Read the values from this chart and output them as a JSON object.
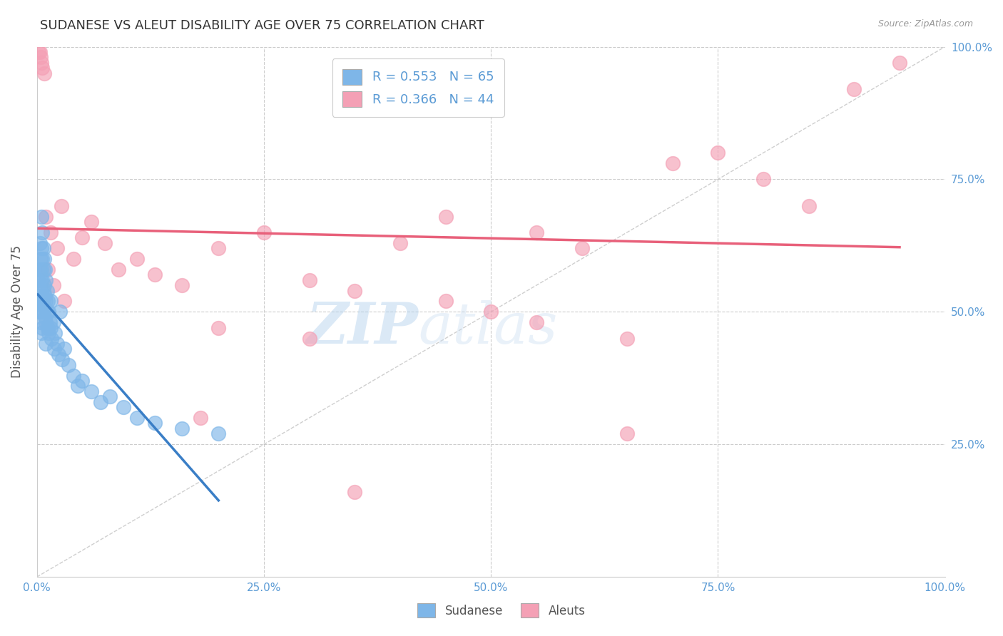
{
  "title": "SUDANESE VS ALEUT DISABILITY AGE OVER 75 CORRELATION CHART",
  "source_text": "Source: ZipAtlas.com",
  "ylabel": "Disability Age Over 75",
  "xlim": [
    0,
    1
  ],
  "ylim": [
    0,
    1
  ],
  "xticks": [
    0,
    0.25,
    0.5,
    0.75,
    1.0
  ],
  "yticks": [
    0.0,
    0.25,
    0.5,
    0.75,
    1.0
  ],
  "xticklabels": [
    "0.0%",
    "25.0%",
    "50.0%",
    "75.0%",
    "100.0%"
  ],
  "yticklabels_right": [
    "",
    "25.0%",
    "50.0%",
    "75.0%",
    "100.0%"
  ],
  "blue_color": "#7EB6E8",
  "pink_color": "#F4A0B5",
  "blue_line_color": "#3A7EC6",
  "pink_line_color": "#E8607A",
  "background_color": "#FFFFFF",
  "grid_color": "#CCCCCC",
  "title_color": "#333333",
  "title_fontsize": 13,
  "axis_label_color": "#555555",
  "tick_color": "#5B9BD5",
  "watermark_text": "ZIPatlas",
  "sudanese_x": [
    0.001,
    0.002,
    0.002,
    0.003,
    0.003,
    0.003,
    0.004,
    0.004,
    0.004,
    0.004,
    0.005,
    0.005,
    0.005,
    0.005,
    0.005,
    0.005,
    0.006,
    0.006,
    0.006,
    0.006,
    0.006,
    0.007,
    0.007,
    0.007,
    0.007,
    0.008,
    0.008,
    0.008,
    0.009,
    0.009,
    0.009,
    0.01,
    0.01,
    0.01,
    0.01,
    0.011,
    0.011,
    0.012,
    0.012,
    0.013,
    0.013,
    0.014,
    0.015,
    0.015,
    0.016,
    0.018,
    0.019,
    0.02,
    0.022,
    0.024,
    0.025,
    0.028,
    0.03,
    0.035,
    0.04,
    0.045,
    0.05,
    0.06,
    0.07,
    0.08,
    0.095,
    0.11,
    0.13,
    0.16,
    0.2
  ],
  "sudanese_y": [
    0.56,
    0.52,
    0.5,
    0.63,
    0.58,
    0.53,
    0.6,
    0.56,
    0.52,
    0.48,
    0.68,
    0.62,
    0.58,
    0.54,
    0.5,
    0.46,
    0.65,
    0.6,
    0.56,
    0.52,
    0.47,
    0.62,
    0.58,
    0.54,
    0.5,
    0.6,
    0.55,
    0.51,
    0.58,
    0.53,
    0.49,
    0.56,
    0.52,
    0.48,
    0.44,
    0.54,
    0.5,
    0.52,
    0.47,
    0.5,
    0.46,
    0.48,
    0.52,
    0.47,
    0.45,
    0.48,
    0.43,
    0.46,
    0.44,
    0.42,
    0.5,
    0.41,
    0.43,
    0.4,
    0.38,
    0.36,
    0.37,
    0.35,
    0.33,
    0.34,
    0.32,
    0.3,
    0.29,
    0.28,
    0.27
  ],
  "aleuts_x": [
    0.002,
    0.003,
    0.004,
    0.005,
    0.006,
    0.008,
    0.01,
    0.012,
    0.015,
    0.018,
    0.022,
    0.027,
    0.03,
    0.04,
    0.05,
    0.06,
    0.075,
    0.09,
    0.11,
    0.13,
    0.16,
    0.2,
    0.25,
    0.3,
    0.35,
    0.4,
    0.45,
    0.5,
    0.55,
    0.6,
    0.65,
    0.7,
    0.75,
    0.8,
    0.85,
    0.9,
    0.95,
    0.2,
    0.3,
    0.45,
    0.55,
    0.65,
    0.18,
    0.35
  ],
  "aleuts_y": [
    0.99,
    0.99,
    0.98,
    0.97,
    0.96,
    0.95,
    0.68,
    0.58,
    0.65,
    0.55,
    0.62,
    0.7,
    0.52,
    0.6,
    0.64,
    0.67,
    0.63,
    0.58,
    0.6,
    0.57,
    0.55,
    0.62,
    0.65,
    0.56,
    0.54,
    0.63,
    0.68,
    0.5,
    0.65,
    0.62,
    0.45,
    0.78,
    0.8,
    0.75,
    0.7,
    0.92,
    0.97,
    0.47,
    0.45,
    0.52,
    0.48,
    0.27,
    0.3,
    0.16
  ]
}
